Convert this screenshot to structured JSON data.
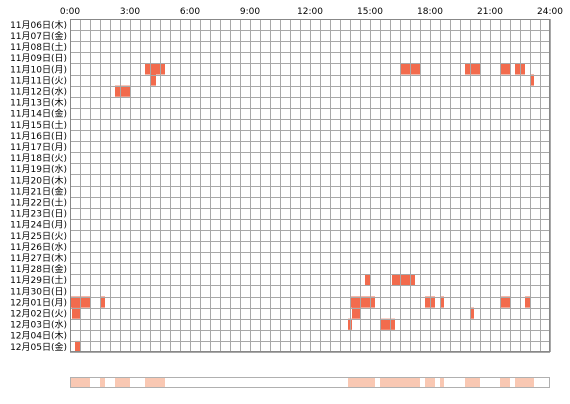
{
  "chart_data": {
    "type": "heatmap",
    "title": "",
    "x_unit": "hour of day",
    "x_range": [
      0,
      24
    ],
    "x_ticks": [
      "0:00",
      "3:00",
      "6:00",
      "9:00",
      "12:00",
      "15:00",
      "18:00",
      "21:00",
      "24:00"
    ],
    "rows": [
      "11月06日(木)",
      "11月07日(金)",
      "11月08日(土)",
      "11月09日(日)",
      "11月10日(月)",
      "11月11日(火)",
      "11月12日(水)",
      "11月13日(木)",
      "11月14日(金)",
      "11月15日(土)",
      "11月16日(日)",
      "11月17日(月)",
      "11月18日(火)",
      "11月19日(水)",
      "11月20日(木)",
      "11月21日(金)",
      "11月22日(土)",
      "11月23日(日)",
      "11月24日(月)",
      "11月25日(火)",
      "11月26日(水)",
      "11月27日(木)",
      "11月28日(金)",
      "11月29日(土)",
      "11月30日(日)",
      "12月01日(月)",
      "12月02日(火)",
      "12月03日(水)",
      "12月04日(木)",
      "12月05日(金)"
    ],
    "cell_minutes": 30,
    "active_color": "#f26b4d",
    "summary_color": "#f9c8b3",
    "grid": true,
    "events": [
      {
        "row": 4,
        "start": 3.75,
        "end": 4.75
      },
      {
        "row": 4,
        "start": 16.5,
        "end": 17.5
      },
      {
        "row": 4,
        "start": 19.75,
        "end": 20.5
      },
      {
        "row": 4,
        "start": 21.5,
        "end": 22.0
      },
      {
        "row": 4,
        "start": 22.25,
        "end": 22.75
      },
      {
        "row": 5,
        "start": 4.0,
        "end": 4.3
      },
      {
        "row": 5,
        "start": 23.0,
        "end": 23.2
      },
      {
        "row": 6,
        "start": 2.25,
        "end": 3.0
      },
      {
        "row": 23,
        "start": 14.75,
        "end": 15.0
      },
      {
        "row": 23,
        "start": 16.1,
        "end": 16.25
      },
      {
        "row": 23,
        "start": 16.25,
        "end": 17.25
      },
      {
        "row": 25,
        "start": 0.0,
        "end": 1.0
      },
      {
        "row": 25,
        "start": 1.5,
        "end": 1.75
      },
      {
        "row": 25,
        "start": 14.0,
        "end": 15.0
      },
      {
        "row": 25,
        "start": 15.0,
        "end": 15.25
      },
      {
        "row": 25,
        "start": 17.75,
        "end": 18.25
      },
      {
        "row": 25,
        "start": 18.5,
        "end": 18.7
      },
      {
        "row": 25,
        "start": 21.5,
        "end": 22.0
      },
      {
        "row": 25,
        "start": 22.75,
        "end": 23.0
      },
      {
        "row": 26,
        "start": 0.1,
        "end": 0.5
      },
      {
        "row": 26,
        "start": 14.1,
        "end": 14.5
      },
      {
        "row": 26,
        "start": 20.0,
        "end": 20.2
      },
      {
        "row": 27,
        "start": 13.9,
        "end": 14.1
      },
      {
        "row": 27,
        "start": 15.5,
        "end": 16.25
      },
      {
        "row": 29,
        "start": 0.25,
        "end": 0.5
      }
    ]
  }
}
